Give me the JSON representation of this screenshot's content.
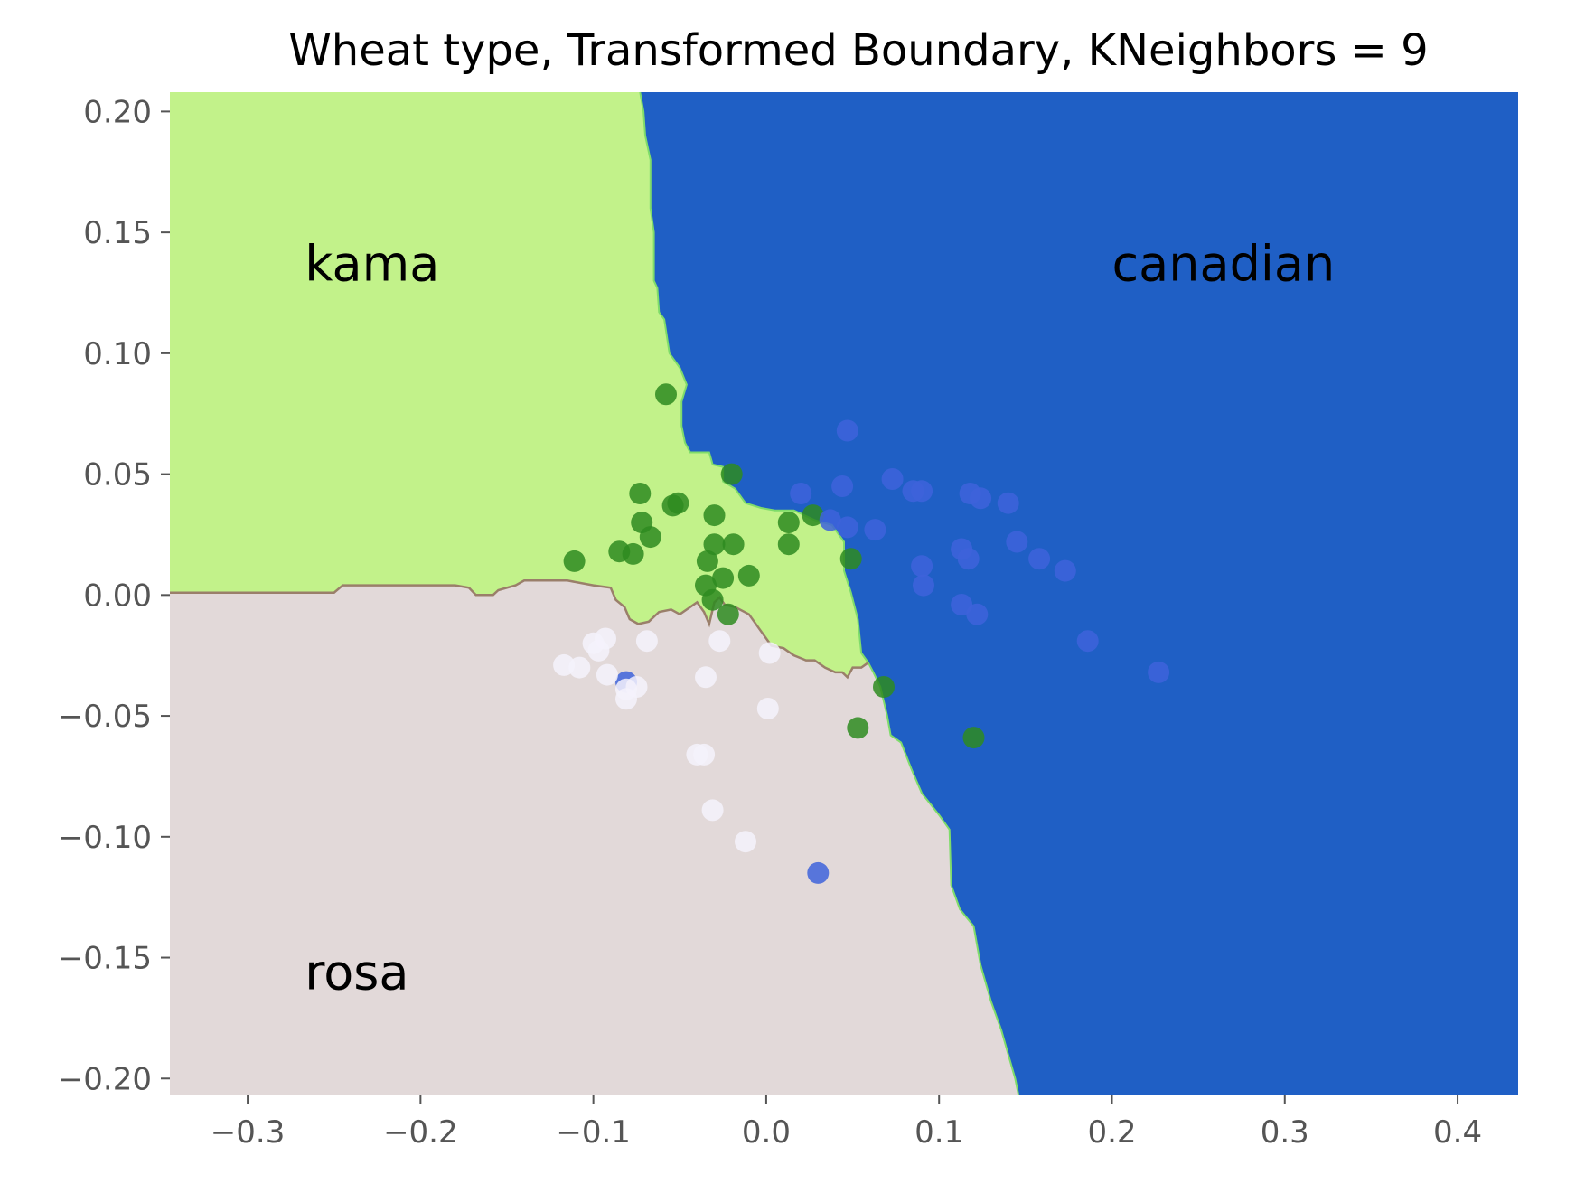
{
  "chart_data": {
    "type": "scatter",
    "title": "Wheat type, Transformed Boundary, KNeighbors = 9",
    "xlabel": "",
    "ylabel": "",
    "xlim": [
      -0.345,
      0.435
    ],
    "ylim": [
      -0.207,
      0.208
    ],
    "grid": false,
    "x_ticks": [
      {
        "value": -0.3,
        "label": "−0.3"
      },
      {
        "value": -0.2,
        "label": "−0.2"
      },
      {
        "value": -0.1,
        "label": "−0.1"
      },
      {
        "value": 0.0,
        "label": "0.0"
      },
      {
        "value": 0.1,
        "label": "0.1"
      },
      {
        "value": 0.2,
        "label": "0.2"
      },
      {
        "value": 0.3,
        "label": "0.3"
      },
      {
        "value": 0.4,
        "label": "0.4"
      }
    ],
    "y_ticks": [
      {
        "value": 0.2,
        "label": "0.20"
      },
      {
        "value": 0.15,
        "label": "0.15"
      },
      {
        "value": 0.1,
        "label": "0.10"
      },
      {
        "value": 0.05,
        "label": "0.05"
      },
      {
        "value": 0.0,
        "label": "0.00"
      },
      {
        "value": -0.05,
        "label": "−0.05"
      },
      {
        "value": -0.1,
        "label": "−0.10"
      },
      {
        "value": -0.15,
        "label": "−0.15"
      },
      {
        "value": -0.2,
        "label": "−0.20"
      }
    ],
    "region_labels": [
      {
        "text": "kama",
        "x": -0.267,
        "y": 0.13
      },
      {
        "text": "canadian",
        "x": 0.2,
        "y": 0.13
      },
      {
        "text": "rosa",
        "x": -0.267,
        "y": -0.163
      }
    ],
    "regions": [
      {
        "name": "kama",
        "color": "#c2f28a",
        "edge_color": "#7fdc6a"
      },
      {
        "name": "canadian",
        "color": "#1f5fc5",
        "edge_color": "#1f5fc5"
      },
      {
        "name": "rosa",
        "color": "#e2d9d9",
        "edge_color": "#9a7f6a"
      }
    ],
    "boundary_kama_canadian": [
      [
        -0.073,
        0.208
      ],
      [
        -0.071,
        0.2
      ],
      [
        -0.07,
        0.19
      ],
      [
        -0.067,
        0.18
      ],
      [
        -0.067,
        0.16
      ],
      [
        -0.065,
        0.15
      ],
      [
        -0.065,
        0.13
      ],
      [
        -0.063,
        0.127
      ],
      [
        -0.062,
        0.117
      ],
      [
        -0.059,
        0.114
      ],
      [
        -0.056,
        0.1
      ],
      [
        -0.05,
        0.094
      ],
      [
        -0.046,
        0.087
      ],
      [
        -0.049,
        0.08
      ],
      [
        -0.049,
        0.07
      ],
      [
        -0.047,
        0.063
      ],
      [
        -0.044,
        0.059
      ],
      [
        -0.033,
        0.059
      ],
      [
        -0.031,
        0.054
      ],
      [
        -0.025,
        0.053
      ],
      [
        -0.025,
        0.047
      ],
      [
        -0.018,
        0.044
      ],
      [
        -0.012,
        0.038
      ],
      [
        -0.003,
        0.036
      ],
      [
        0.005,
        0.035
      ],
      [
        0.016,
        0.035
      ],
      [
        0.028,
        0.031
      ],
      [
        0.038,
        0.029
      ],
      [
        0.045,
        0.022
      ],
      [
        0.045,
        0.01
      ],
      [
        0.049,
        0.001
      ],
      [
        0.053,
        -0.01
      ],
      [
        0.055,
        -0.024
      ],
      [
        0.059,
        -0.028
      ],
      [
        0.062,
        -0.032
      ],
      [
        0.066,
        -0.038
      ],
      [
        0.07,
        -0.05
      ],
      [
        0.072,
        -0.058
      ],
      [
        0.078,
        -0.061
      ],
      [
        0.084,
        -0.072
      ],
      [
        0.09,
        -0.082
      ],
      [
        0.1,
        -0.091
      ],
      [
        0.106,
        -0.097
      ],
      [
        0.107,
        -0.12
      ],
      [
        0.112,
        -0.13
      ],
      [
        0.12,
        -0.137
      ],
      [
        0.124,
        -0.153
      ],
      [
        0.13,
        -0.168
      ],
      [
        0.136,
        -0.18
      ],
      [
        0.14,
        -0.19
      ],
      [
        0.144,
        -0.2
      ],
      [
        0.146,
        -0.207
      ]
    ],
    "boundary_kama_rosa": [
      [
        -0.345,
        0.001
      ],
      [
        -0.25,
        0.001
      ],
      [
        -0.245,
        0.004
      ],
      [
        -0.2,
        0.004
      ],
      [
        -0.18,
        0.004
      ],
      [
        -0.172,
        0.003
      ],
      [
        -0.168,
        0.0
      ],
      [
        -0.158,
        0.0
      ],
      [
        -0.155,
        0.002
      ],
      [
        -0.145,
        0.004
      ],
      [
        -0.14,
        0.006
      ],
      [
        -0.115,
        0.006
      ],
      [
        -0.1,
        0.004
      ],
      [
        -0.09,
        0.003
      ],
      [
        -0.087,
        -0.002
      ],
      [
        -0.082,
        -0.005
      ],
      [
        -0.079,
        -0.01
      ],
      [
        -0.074,
        -0.012
      ],
      [
        -0.068,
        -0.011
      ],
      [
        -0.062,
        -0.007
      ],
      [
        -0.055,
        -0.006
      ],
      [
        -0.05,
        -0.008
      ],
      [
        -0.044,
        -0.005
      ],
      [
        -0.04,
        -0.003
      ],
      [
        -0.036,
        -0.007
      ],
      [
        -0.033,
        -0.012
      ],
      [
        -0.03,
        -0.003
      ],
      [
        -0.027,
        -0.001
      ],
      [
        -0.024,
        -0.004
      ],
      [
        -0.018,
        -0.005
      ],
      [
        -0.01,
        -0.008
      ],
      [
        -0.004,
        -0.014
      ],
      [
        0.003,
        -0.021
      ],
      [
        0.01,
        -0.022
      ],
      [
        0.016,
        -0.025
      ],
      [
        0.023,
        -0.027
      ],
      [
        0.028,
        -0.027
      ],
      [
        0.034,
        -0.03
      ],
      [
        0.04,
        -0.032
      ],
      [
        0.044,
        -0.032
      ],
      [
        0.047,
        -0.034
      ],
      [
        0.05,
        -0.03
      ],
      [
        0.055,
        -0.03
      ],
      [
        0.059,
        -0.028
      ]
    ],
    "series": [
      {
        "name": "kama",
        "color": "#2e8b20",
        "points": [
          [
            -0.058,
            0.083
          ],
          [
            -0.02,
            0.05
          ],
          [
            -0.073,
            0.042
          ],
          [
            -0.054,
            0.037
          ],
          [
            -0.051,
            0.038
          ],
          [
            -0.072,
            0.03
          ],
          [
            -0.067,
            0.024
          ],
          [
            -0.03,
            0.033
          ],
          [
            -0.03,
            0.021
          ],
          [
            -0.019,
            0.021
          ],
          [
            -0.085,
            0.018
          ],
          [
            -0.077,
            0.017
          ],
          [
            -0.111,
            0.014
          ],
          [
            -0.034,
            0.014
          ],
          [
            -0.025,
            0.007
          ],
          [
            -0.01,
            0.008
          ],
          [
            -0.035,
            0.004
          ],
          [
            -0.031,
            -0.002
          ],
          [
            -0.022,
            -0.008
          ],
          [
            0.013,
            0.03
          ],
          [
            0.027,
            0.033
          ],
          [
            0.013,
            0.021
          ],
          [
            0.049,
            0.015
          ],
          [
            0.068,
            -0.038
          ],
          [
            0.053,
            -0.055
          ],
          [
            0.12,
            -0.059
          ]
        ]
      },
      {
        "name": "canadian",
        "color": "#3e63db",
        "points": [
          [
            0.047,
            0.068
          ],
          [
            0.073,
            0.048
          ],
          [
            0.044,
            0.045
          ],
          [
            0.085,
            0.043
          ],
          [
            0.09,
            0.043
          ],
          [
            0.02,
            0.042
          ],
          [
            0.118,
            0.042
          ],
          [
            0.124,
            0.04
          ],
          [
            0.14,
            0.038
          ],
          [
            0.037,
            0.031
          ],
          [
            0.047,
            0.028
          ],
          [
            0.063,
            0.027
          ],
          [
            0.145,
            0.022
          ],
          [
            0.113,
            0.019
          ],
          [
            0.117,
            0.015
          ],
          [
            0.158,
            0.015
          ],
          [
            0.09,
            0.012
          ],
          [
            0.173,
            0.01
          ],
          [
            0.091,
            0.004
          ],
          [
            0.113,
            -0.004
          ],
          [
            0.122,
            -0.008
          ],
          [
            0.186,
            -0.019
          ],
          [
            0.227,
            -0.032
          ],
          [
            -0.081,
            -0.036
          ],
          [
            0.03,
            -0.115
          ]
        ]
      },
      {
        "name": "rosa",
        "color": "#f4f2fb",
        "points": [
          [
            -0.093,
            -0.018
          ],
          [
            -0.1,
            -0.02
          ],
          [
            -0.069,
            -0.019
          ],
          [
            -0.027,
            -0.019
          ],
          [
            -0.097,
            -0.023
          ],
          [
            0.002,
            -0.024
          ],
          [
            -0.117,
            -0.029
          ],
          [
            -0.108,
            -0.03
          ],
          [
            -0.092,
            -0.033
          ],
          [
            -0.035,
            -0.034
          ],
          [
            -0.075,
            -0.038
          ],
          [
            -0.081,
            -0.039
          ],
          [
            -0.081,
            -0.043
          ],
          [
            0.001,
            -0.047
          ],
          [
            -0.04,
            -0.066
          ],
          [
            -0.036,
            -0.066
          ],
          [
            -0.031,
            -0.089
          ],
          [
            -0.012,
            -0.102
          ]
        ]
      }
    ]
  }
}
